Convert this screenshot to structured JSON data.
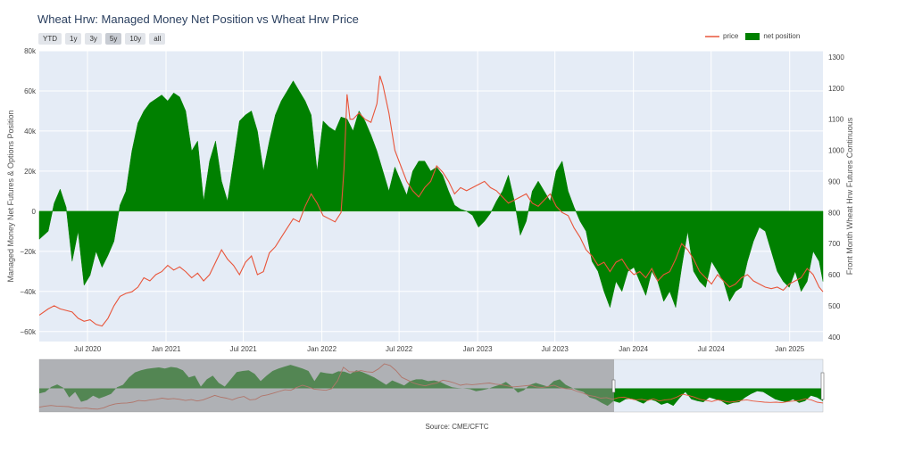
{
  "title": "Wheat Hrw: Managed Money Net Position vs Wheat Hrw Price",
  "range_buttons": [
    "YTD",
    "1y",
    "3y",
    "5y",
    "10y",
    "all"
  ],
  "active_range": "5y",
  "source": "Source: CME/CFTC",
  "colors": {
    "price": "#e8553a",
    "net": "#008000",
    "plot_bg": "#e5ecf6",
    "mask": "#8a8a8a"
  },
  "chart_data": {
    "type": "area",
    "title": "Wheat Hrw: Managed Money Net Position vs Wheat Hrw Price",
    "ylabel": "Managed Money Net Futures & Options Position",
    "y2label": "Front Month Wheat Hrw Futures Continuous",
    "xlim": [
      "2020-03-10",
      "2025-03-20"
    ],
    "ylim": [
      -65000,
      80000
    ],
    "y2lim": [
      385,
      1320
    ],
    "x_ticks": [
      "Jul 2020",
      "Jan 2021",
      "Jul 2021",
      "Jan 2022",
      "Jul 2022",
      "Jan 2023",
      "Jul 2023",
      "Jan 2024",
      "Jul 2024",
      "Jan 2025"
    ],
    "x_tick_dates": [
      "2020-07-01",
      "2021-01-01",
      "2021-07-01",
      "2022-01-01",
      "2022-07-01",
      "2023-01-01",
      "2023-07-01",
      "2024-01-01",
      "2024-07-01",
      "2025-01-01"
    ],
    "y_ticks": [
      -60000,
      -40000,
      -20000,
      0,
      20000,
      40000,
      60000,
      80000
    ],
    "y_tick_labels": [
      "−60k",
      "−40k",
      "−20k",
      "0",
      "20k",
      "40k",
      "60k",
      "80k"
    ],
    "y2_ticks": [
      400,
      500,
      600,
      700,
      800,
      900,
      1000,
      1100,
      1200,
      1300
    ],
    "legend_position": "top-right",
    "grid": true,
    "series": [
      {
        "name": "net position",
        "style": "area",
        "axis": "y",
        "x": [
          "2020-03-10",
          "2020-03-31",
          "2020-04-14",
          "2020-04-28",
          "2020-05-12",
          "2020-05-26",
          "2020-06-09",
          "2020-06-23",
          "2020-07-07",
          "2020-07-21",
          "2020-08-04",
          "2020-08-18",
          "2020-09-01",
          "2020-09-15",
          "2020-09-29",
          "2020-10-13",
          "2020-10-27",
          "2020-11-10",
          "2020-11-24",
          "2020-12-08",
          "2020-12-22",
          "2021-01-05",
          "2021-01-19",
          "2021-02-02",
          "2021-02-16",
          "2021-03-02",
          "2021-03-16",
          "2021-03-30",
          "2021-04-13",
          "2021-04-27",
          "2021-05-11",
          "2021-05-25",
          "2021-06-08",
          "2021-06-22",
          "2021-07-06",
          "2021-07-20",
          "2021-08-03",
          "2021-08-17",
          "2021-08-31",
          "2021-09-14",
          "2021-09-28",
          "2021-10-12",
          "2021-10-26",
          "2021-11-09",
          "2021-11-23",
          "2021-12-07",
          "2021-12-21",
          "2022-01-04",
          "2022-01-18",
          "2022-02-01",
          "2022-02-15",
          "2022-03-01",
          "2022-03-15",
          "2022-03-29",
          "2022-04-12",
          "2022-04-26",
          "2022-05-10",
          "2022-05-24",
          "2022-06-07",
          "2022-06-21",
          "2022-07-05",
          "2022-07-19",
          "2022-08-02",
          "2022-08-16",
          "2022-08-30",
          "2022-09-13",
          "2022-09-27",
          "2022-10-11",
          "2022-10-25",
          "2022-11-08",
          "2022-11-22",
          "2022-12-06",
          "2022-12-20",
          "2023-01-03",
          "2023-01-17",
          "2023-01-31",
          "2023-02-14",
          "2023-02-28",
          "2023-03-14",
          "2023-03-28",
          "2023-04-11",
          "2023-04-25",
          "2023-05-09",
          "2023-05-23",
          "2023-06-06",
          "2023-06-20",
          "2023-07-04",
          "2023-07-18",
          "2023-08-01",
          "2023-08-15",
          "2023-08-29",
          "2023-09-12",
          "2023-09-26",
          "2023-10-10",
          "2023-10-24",
          "2023-11-07",
          "2023-11-21",
          "2023-12-05",
          "2023-12-19",
          "2024-01-02",
          "2024-01-16",
          "2024-01-30",
          "2024-02-13",
          "2024-02-27",
          "2024-03-12",
          "2024-03-26",
          "2024-04-09",
          "2024-04-23",
          "2024-05-07",
          "2024-05-21",
          "2024-06-04",
          "2024-06-18",
          "2024-07-02",
          "2024-07-16",
          "2024-07-30",
          "2024-08-13",
          "2024-08-27",
          "2024-09-10",
          "2024-09-24",
          "2024-10-08",
          "2024-10-22",
          "2024-11-05",
          "2024-11-19",
          "2024-12-03",
          "2024-12-17",
          "2024-12-31",
          "2025-01-14",
          "2025-01-28",
          "2025-02-11",
          "2025-02-25",
          "2025-03-11",
          "2025-03-20"
        ],
        "values": [
          -14000,
          -10000,
          4000,
          11000,
          2000,
          -25000,
          -10000,
          -37000,
          -32000,
          -20000,
          -28000,
          -22000,
          -15000,
          3000,
          10000,
          30000,
          44000,
          50000,
          54000,
          56000,
          58000,
          55000,
          59000,
          57000,
          50000,
          30000,
          35000,
          5000,
          25000,
          35000,
          15000,
          5000,
          25000,
          45000,
          48000,
          50000,
          40000,
          20000,
          35000,
          48000,
          55000,
          60000,
          65000,
          60000,
          55000,
          48000,
          20000,
          45000,
          42000,
          40000,
          47000,
          46000,
          40000,
          50000,
          45000,
          38000,
          30000,
          20000,
          10000,
          22000,
          15000,
          8000,
          20000,
          25000,
          25000,
          20000,
          22000,
          18000,
          10000,
          3000,
          1000,
          0,
          -2000,
          -8000,
          -5000,
          -1000,
          5000,
          10000,
          18000,
          5000,
          -12000,
          -5000,
          10000,
          15000,
          10000,
          5000,
          20000,
          25000,
          10000,
          2000,
          -5000,
          -10000,
          -25000,
          -30000,
          -40000,
          -48000,
          -35000,
          -40000,
          -30000,
          -28000,
          -35000,
          -42000,
          -30000,
          -35000,
          -45000,
          -40000,
          -48000,
          -28000,
          -10000,
          -30000,
          -35000,
          -38000,
          -25000,
          -30000,
          -35000,
          -45000,
          -40000,
          -38000,
          -25000,
          -15000,
          -8000,
          -10000,
          -20000,
          -30000,
          -35000,
          -38000,
          -30000,
          -40000,
          -35000,
          -20000,
          -25000,
          -35000
        ],
        "color": "#008000"
      },
      {
        "name": "price",
        "style": "line",
        "axis": "y2",
        "x": [
          "2020-03-10",
          "2020-03-31",
          "2020-04-14",
          "2020-04-28",
          "2020-05-12",
          "2020-05-26",
          "2020-06-09",
          "2020-06-23",
          "2020-07-07",
          "2020-07-21",
          "2020-08-04",
          "2020-08-18",
          "2020-09-01",
          "2020-09-15",
          "2020-09-29",
          "2020-10-13",
          "2020-10-27",
          "2020-11-10",
          "2020-11-24",
          "2020-12-08",
          "2020-12-22",
          "2021-01-05",
          "2021-01-19",
          "2021-02-02",
          "2021-02-16",
          "2021-03-02",
          "2021-03-16",
          "2021-03-30",
          "2021-04-13",
          "2021-04-27",
          "2021-05-11",
          "2021-05-25",
          "2021-06-08",
          "2021-06-22",
          "2021-07-06",
          "2021-07-20",
          "2021-08-03",
          "2021-08-17",
          "2021-08-31",
          "2021-09-14",
          "2021-09-28",
          "2021-10-12",
          "2021-10-26",
          "2021-11-09",
          "2021-11-23",
          "2021-12-07",
          "2021-12-21",
          "2022-01-04",
          "2022-01-18",
          "2022-02-01",
          "2022-02-15",
          "2022-02-22",
          "2022-03-01",
          "2022-03-08",
          "2022-03-15",
          "2022-03-29",
          "2022-04-12",
          "2022-04-26",
          "2022-05-10",
          "2022-05-17",
          "2022-05-24",
          "2022-06-07",
          "2022-06-21",
          "2022-07-05",
          "2022-07-19",
          "2022-08-02",
          "2022-08-16",
          "2022-08-30",
          "2022-09-13",
          "2022-09-27",
          "2022-10-11",
          "2022-10-25",
          "2022-11-08",
          "2022-11-22",
          "2022-12-06",
          "2022-12-20",
          "2023-01-03",
          "2023-01-17",
          "2023-01-31",
          "2023-02-14",
          "2023-02-28",
          "2023-03-14",
          "2023-03-28",
          "2023-04-11",
          "2023-04-25",
          "2023-05-09",
          "2023-05-23",
          "2023-06-06",
          "2023-06-20",
          "2023-07-04",
          "2023-07-18",
          "2023-08-01",
          "2023-08-15",
          "2023-08-29",
          "2023-09-12",
          "2023-09-26",
          "2023-10-10",
          "2023-10-24",
          "2023-11-07",
          "2023-11-21",
          "2023-12-05",
          "2023-12-19",
          "2024-01-02",
          "2024-01-16",
          "2024-01-30",
          "2024-02-13",
          "2024-02-27",
          "2024-03-12",
          "2024-03-26",
          "2024-04-09",
          "2024-04-23",
          "2024-05-07",
          "2024-05-21",
          "2024-06-04",
          "2024-06-18",
          "2024-07-02",
          "2024-07-16",
          "2024-07-30",
          "2024-08-13",
          "2024-08-27",
          "2024-09-10",
          "2024-09-24",
          "2024-10-08",
          "2024-10-22",
          "2024-11-05",
          "2024-11-19",
          "2024-12-03",
          "2024-12-17",
          "2024-12-31",
          "2025-01-14",
          "2025-01-28",
          "2025-02-11",
          "2025-02-25",
          "2025-03-11",
          "2025-03-20"
        ],
        "values": [
          470,
          490,
          500,
          490,
          485,
          480,
          460,
          450,
          455,
          440,
          435,
          460,
          500,
          530,
          540,
          545,
          560,
          590,
          580,
          600,
          610,
          630,
          615,
          625,
          610,
          590,
          605,
          580,
          600,
          640,
          680,
          650,
          630,
          600,
          640,
          660,
          600,
          610,
          670,
          690,
          720,
          750,
          780,
          770,
          820,
          860,
          830,
          790,
          780,
          770,
          800,
          940,
          1180,
          1100,
          1100,
          1120,
          1100,
          1090,
          1150,
          1240,
          1210,
          1120,
          1000,
          950,
          900,
          870,
          850,
          880,
          900,
          950,
          930,
          900,
          860,
          880,
          870,
          880,
          890,
          900,
          880,
          870,
          850,
          830,
          840,
          850,
          860,
          830,
          820,
          840,
          860,
          820,
          800,
          790,
          750,
          720,
          680,
          660,
          630,
          640,
          610,
          640,
          650,
          620,
          600,
          610,
          590,
          620,
          580,
          600,
          610,
          650,
          700,
          680,
          650,
          610,
          590,
          570,
          600,
          580,
          560,
          570,
          590,
          600,
          580,
          570,
          560,
          555,
          560,
          550,
          570,
          580,
          590,
          620,
          600,
          560,
          545
        ],
        "color": "#e8553a"
      }
    ]
  }
}
